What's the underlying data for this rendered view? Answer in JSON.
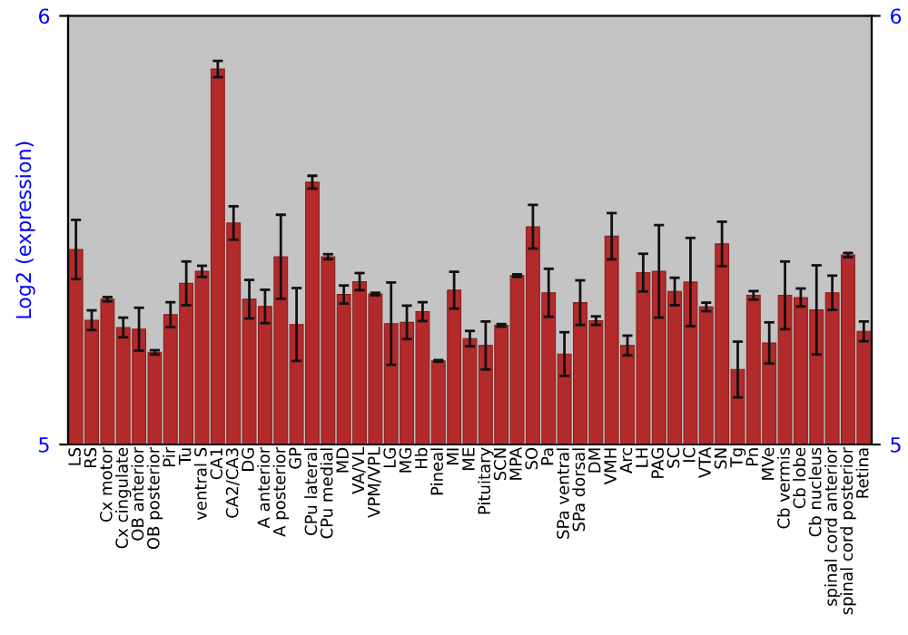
{
  "chart_data": {
    "type": "bar",
    "ylabel": "Log2 (expression)",
    "categories": [
      "LS",
      "RS",
      "Cx motor",
      "Cx cingulate",
      "OB anterior",
      "OB posterior",
      "Pir",
      "Tu",
      "ventral S",
      "CA1",
      "CA2/CA3",
      "DG",
      "A anterior",
      "A posterior",
      "GP",
      "CPu lateral",
      "CPu medial",
      "MD",
      "VA/VL",
      "VPM/VPL",
      "LG",
      "MG",
      "Hb",
      "Pineal",
      "MI",
      "ME",
      "Pituitary",
      "SCN",
      "MPA",
      "SO",
      "Pa",
      "SPa ventral",
      "SPa dorsal",
      "DM",
      "VMH",
      "Arc",
      "LH",
      "PAG",
      "SC",
      "IC",
      "VTA",
      "SN",
      "Tg",
      "Pn",
      "MVe",
      "Cb vermis",
      "Cb lobe",
      "Cb nucleus",
      "spinal cord anterior",
      "spinal cord posterior",
      "Retina"
    ],
    "series": [
      {
        "color": "#b32a2a",
        "values": [
          5.455,
          5.29,
          5.339,
          5.273,
          5.269,
          5.215,
          5.303,
          5.376,
          5.404,
          5.876,
          5.517,
          5.339,
          5.322,
          5.438,
          5.28,
          5.612,
          5.438,
          5.35,
          5.38,
          5.351,
          5.282,
          5.285,
          5.31,
          5.195,
          5.36,
          5.247,
          5.231,
          5.278,
          5.394,
          5.508,
          5.354,
          5.211,
          5.331,
          5.289,
          5.486,
          5.231,
          5.401,
          5.404,
          5.357,
          5.379,
          5.321,
          5.468,
          5.175,
          5.348,
          5.237,
          5.348,
          5.343,
          5.314,
          5.354,
          5.442,
          5.264
        ],
        "errors": [
          0.069,
          0.023,
          0.005,
          0.023,
          0.05,
          0.005,
          0.029,
          0.051,
          0.013,
          0.019,
          0.039,
          0.045,
          0.039,
          0.098,
          0.085,
          0.015,
          0.006,
          0.021,
          0.02,
          0.003,
          0.096,
          0.039,
          0.022,
          0.002,
          0.043,
          0.018,
          0.056,
          0.003,
          0.003,
          0.051,
          0.056,
          0.051,
          0.052,
          0.01,
          0.054,
          0.023,
          0.044,
          0.108,
          0.032,
          0.103,
          0.01,
          0.052,
          0.065,
          0.01,
          0.048,
          0.079,
          0.021,
          0.104,
          0.04,
          0.005,
          0.023
        ]
      }
    ],
    "ylim": [
      5,
      6
    ],
    "yticks": [
      5,
      6
    ],
    "y2lim": [
      5,
      6
    ],
    "y2ticks": [
      5,
      6
    ],
    "grid": false,
    "legend": false
  }
}
